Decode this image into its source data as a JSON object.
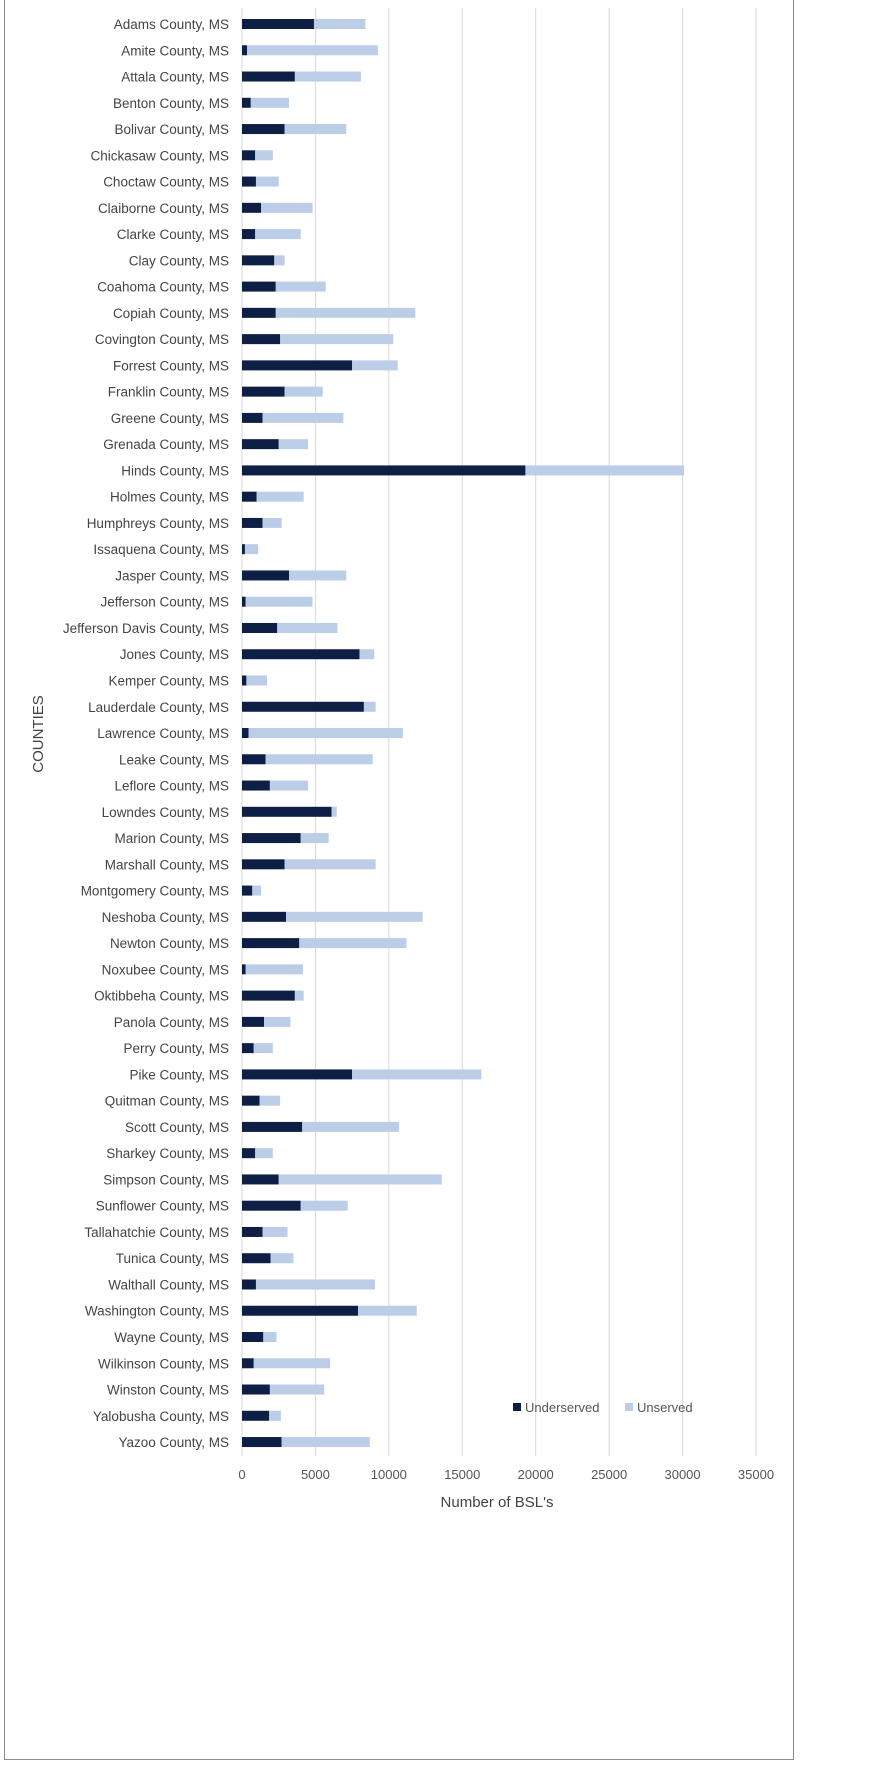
{
  "chart_data": {
    "type": "bar",
    "orientation": "horizontal",
    "stacked": true,
    "ylabel": "COUNTIES",
    "xlabel": "Number of BSL's",
    "xlim": [
      0,
      35000
    ],
    "xticks": [
      0,
      5000,
      10000,
      15000,
      20000,
      25000,
      30000,
      35000
    ],
    "grid": "vertical",
    "legend_position": "bottom-right",
    "categories": [
      "Adams County, MS",
      "Amite County, MS",
      "Attala County, MS",
      "Benton County, MS",
      "Bolivar County, MS",
      "Chickasaw County, MS",
      "Choctaw County, MS",
      "Claiborne County, MS",
      "Clarke County, MS",
      "Clay County, MS",
      "Coahoma County, MS",
      "Copiah County, MS",
      "Covington County, MS",
      "Forrest County, MS",
      "Franklin County, MS",
      "Greene County, MS",
      "Grenada County, MS",
      "Hinds County, MS",
      "Holmes County, MS",
      "Humphreys County, MS",
      "Issaquena County, MS",
      "Jasper County, MS",
      "Jefferson County, MS",
      "Jefferson Davis County, MS",
      "Jones County, MS",
      "Kemper County, MS",
      "Lauderdale County, MS",
      "Lawrence County, MS",
      "Leake County, MS",
      "Leflore County, MS",
      "Lowndes County, MS",
      "Marion County, MS",
      "Marshall County, MS",
      "Montgomery County, MS",
      "Neshoba County, MS",
      "Newton County, MS",
      "Noxubee County, MS",
      "Oktibbeha County, MS",
      "Panola County, MS",
      "Perry County, MS",
      "Pike County, MS",
      "Quitman County, MS",
      "Scott County, MS",
      "Sharkey County, MS",
      "Simpson County, MS",
      "Sunflower County, MS",
      "Tallahatchie County, MS",
      "Tunica County, MS",
      "Walthall County, MS",
      "Washington County, MS",
      "Wayne County, MS",
      "Wilkinson County, MS",
      "Winston County, MS",
      "Yalobusha County, MS",
      "Yazoo County, MS"
    ],
    "series": [
      {
        "name": "Underserved",
        "color": "#0d1f45",
        "values": [
          4900,
          350,
          3600,
          600,
          2900,
          900,
          950,
          1300,
          900,
          2200,
          2300,
          2300,
          2600,
          7500,
          2900,
          1400,
          2500,
          19300,
          1000,
          1400,
          200,
          3200,
          250,
          2400,
          8000,
          300,
          8300,
          450,
          1600,
          1900,
          6100,
          4000,
          2900,
          700,
          3000,
          3900,
          250,
          3600,
          1500,
          800,
          7500,
          1200,
          4100,
          900,
          2500,
          4000,
          1400,
          1950,
          950,
          7900,
          1450,
          800,
          1900,
          1850,
          2700
        ]
      },
      {
        "name": "Unserved",
        "color": "#bccde7",
        "values": [
          3500,
          8900,
          4500,
          2600,
          4200,
          1200,
          1550,
          3500,
          3100,
          700,
          3400,
          9500,
          7700,
          3100,
          2600,
          5500,
          2000,
          10800,
          3200,
          1300,
          900,
          3900,
          4550,
          4100,
          1000,
          1400,
          800,
          10500,
          7300,
          2600,
          350,
          1900,
          6200,
          600,
          9300,
          7300,
          3900,
          600,
          1800,
          1300,
          8800,
          1400,
          6600,
          1200,
          11100,
          3200,
          1700,
          1550,
          8100,
          4000,
          900,
          5200,
          3700,
          800,
          6000
        ]
      }
    ]
  }
}
